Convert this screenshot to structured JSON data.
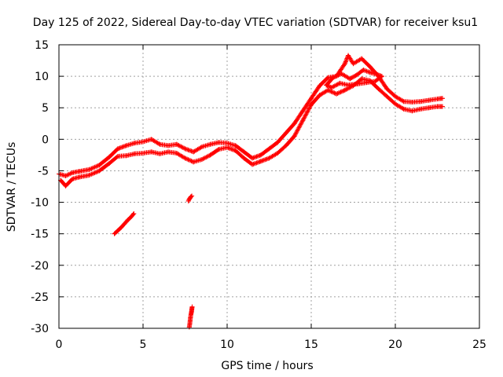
{
  "chart_data": {
    "type": "scatter",
    "title": "Day 125 of 2022, Sidereal Day-to-day VTEC variation (SDTVAR) for receiver ksu1",
    "xlabel": "GPS time / hours",
    "ylabel": "SDTVAR / TECUs",
    "xlim": [
      0,
      25
    ],
    "ylim": [
      -30,
      15
    ],
    "xticks": [
      0,
      5,
      10,
      15,
      20,
      25
    ],
    "yticks": [
      -30,
      -25,
      -20,
      -15,
      -10,
      -5,
      0,
      5,
      10,
      15
    ],
    "grid": true,
    "legend": "none",
    "marker": "+",
    "color": "#ff0000",
    "series": [
      {
        "name": "main_band_lower",
        "points": [
          [
            0.1,
            -6.5
          ],
          [
            0.4,
            -7.4
          ],
          [
            0.8,
            -6.3
          ],
          [
            1.2,
            -6.0
          ],
          [
            1.8,
            -5.7
          ],
          [
            2.4,
            -5.0
          ],
          [
            3.0,
            -3.8
          ],
          [
            3.5,
            -2.7
          ],
          [
            4.0,
            -2.6
          ],
          [
            4.5,
            -2.3
          ],
          [
            5.0,
            -2.2
          ],
          [
            5.5,
            -2.0
          ],
          [
            6.0,
            -2.3
          ],
          [
            6.5,
            -2.0
          ],
          [
            7.0,
            -2.2
          ],
          [
            7.5,
            -3.0
          ],
          [
            8.0,
            -3.6
          ],
          [
            8.5,
            -3.2
          ],
          [
            9.0,
            -2.5
          ],
          [
            9.5,
            -1.6
          ],
          [
            10.0,
            -1.3
          ],
          [
            10.5,
            -1.8
          ],
          [
            11.0,
            -3.0
          ],
          [
            11.5,
            -4.0
          ],
          [
            12.0,
            -3.5
          ],
          [
            12.5,
            -3.0
          ],
          [
            13.0,
            -2.2
          ],
          [
            13.5,
            -1.0
          ],
          [
            14.0,
            0.5
          ],
          [
            14.5,
            3.0
          ],
          [
            15.0,
            5.5
          ],
          [
            15.5,
            7.0
          ],
          [
            16.0,
            7.8
          ],
          [
            16.5,
            7.2
          ],
          [
            17.0,
            7.8
          ],
          [
            17.5,
            8.5
          ],
          [
            18.0,
            9.6
          ],
          [
            18.5,
            9.3
          ],
          [
            19.0,
            8.0
          ],
          [
            19.5,
            6.8
          ],
          [
            20.0,
            5.6
          ],
          [
            20.5,
            4.8
          ],
          [
            21.0,
            4.5
          ],
          [
            21.5,
            4.8
          ],
          [
            22.0,
            5.0
          ],
          [
            22.5,
            5.2
          ],
          [
            22.8,
            5.2
          ]
        ]
      },
      {
        "name": "main_band_upper",
        "points": [
          [
            0.0,
            -5.5
          ],
          [
            0.4,
            -5.8
          ],
          [
            0.8,
            -5.3
          ],
          [
            1.2,
            -5.1
          ],
          [
            1.8,
            -4.8
          ],
          [
            2.4,
            -4.1
          ],
          [
            3.0,
            -2.8
          ],
          [
            3.5,
            -1.5
          ],
          [
            4.0,
            -1.0
          ],
          [
            4.5,
            -0.6
          ],
          [
            5.0,
            -0.4
          ],
          [
            5.5,
            0.0
          ],
          [
            6.0,
            -0.8
          ],
          [
            6.5,
            -1.0
          ],
          [
            7.0,
            -0.8
          ],
          [
            7.5,
            -1.5
          ],
          [
            8.0,
            -2.0
          ],
          [
            8.5,
            -1.2
          ],
          [
            9.0,
            -0.8
          ],
          [
            9.5,
            -0.5
          ],
          [
            10.0,
            -0.6
          ],
          [
            10.5,
            -1.0
          ],
          [
            11.0,
            -2.0
          ],
          [
            11.5,
            -3.0
          ],
          [
            12.0,
            -2.5
          ],
          [
            12.5,
            -1.5
          ],
          [
            13.0,
            -0.5
          ],
          [
            13.5,
            1.0
          ],
          [
            14.0,
            2.5
          ],
          [
            14.5,
            4.5
          ],
          [
            15.0,
            6.5
          ],
          [
            15.5,
            8.5
          ],
          [
            16.0,
            9.8
          ],
          [
            16.5,
            10.0
          ],
          [
            17.0,
            12.0
          ],
          [
            17.2,
            13.3
          ],
          [
            17.5,
            12.0
          ],
          [
            18.0,
            12.8
          ],
          [
            18.5,
            11.5
          ],
          [
            19.0,
            10.0
          ],
          [
            19.5,
            8.0
          ],
          [
            20.0,
            6.8
          ],
          [
            20.5,
            6.0
          ],
          [
            21.0,
            5.9
          ],
          [
            21.5,
            6.0
          ],
          [
            22.0,
            6.2
          ],
          [
            22.5,
            6.4
          ],
          [
            22.8,
            6.5
          ]
        ]
      },
      {
        "name": "inner_loop",
        "points": [
          [
            15.9,
            8.6
          ],
          [
            16.3,
            9.8
          ],
          [
            16.8,
            10.4
          ],
          [
            17.3,
            9.6
          ],
          [
            17.7,
            10.2
          ],
          [
            18.1,
            11.0
          ],
          [
            18.5,
            10.6
          ],
          [
            18.9,
            10.3
          ],
          [
            19.2,
            10.0
          ],
          [
            18.8,
            9.2
          ],
          [
            18.3,
            9.0
          ],
          [
            17.8,
            8.8
          ],
          [
            17.2,
            8.6
          ],
          [
            16.7,
            8.9
          ],
          [
            16.2,
            8.2
          ],
          [
            15.9,
            8.6
          ]
        ]
      },
      {
        "name": "isolated_segment_1",
        "points": [
          [
            3.3,
            -15.0
          ],
          [
            3.5,
            -14.5
          ],
          [
            3.7,
            -14.0
          ],
          [
            3.9,
            -13.4
          ],
          [
            4.1,
            -12.8
          ],
          [
            4.3,
            -12.3
          ],
          [
            4.45,
            -11.8
          ]
        ]
      },
      {
        "name": "isolated_segment_2",
        "points": [
          [
            7.7,
            -9.8
          ],
          [
            7.75,
            -9.5
          ],
          [
            7.8,
            -9.3
          ],
          [
            7.85,
            -9.1
          ],
          [
            7.9,
            -9.0
          ]
        ]
      },
      {
        "name": "isolated_segment_3",
        "points": [
          [
            7.75,
            -29.8
          ],
          [
            7.78,
            -29.3
          ],
          [
            7.8,
            -28.8
          ],
          [
            7.82,
            -28.3
          ],
          [
            7.85,
            -27.8
          ],
          [
            7.88,
            -27.4
          ],
          [
            7.9,
            -27.0
          ],
          [
            7.92,
            -26.6
          ]
        ]
      }
    ]
  }
}
